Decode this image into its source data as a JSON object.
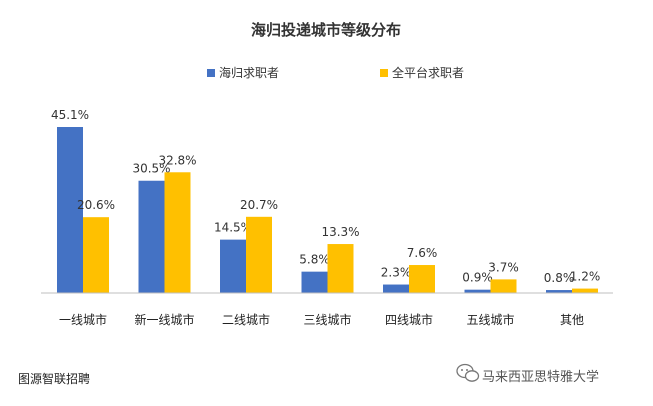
{
  "chart_data": {
    "type": "bar",
    "title": "海归投递城市等级分布",
    "categories": [
      "一线城市",
      "新一线城市",
      "二线城市",
      "三线城市",
      "四线城市",
      "五线城市",
      "其他"
    ],
    "series": [
      {
        "name": "海归求职者",
        "values": [
          45.1,
          30.5,
          14.5,
          5.8,
          2.3,
          0.9,
          0.8
        ],
        "color": "#4472C4"
      },
      {
        "name": "全平台求职者",
        "values": [
          20.6,
          32.8,
          20.7,
          13.3,
          7.6,
          3.7,
          1.2
        ],
        "color": "#FFC000"
      }
    ],
    "value_suffix": "%",
    "ylim": [
      0,
      50
    ],
    "grid": false,
    "legend": "top-center"
  },
  "footer": {
    "source": "图源智联招聘",
    "watermark": "马来西亚思特雅大学",
    "watermark_icon": "wechat-icon"
  }
}
